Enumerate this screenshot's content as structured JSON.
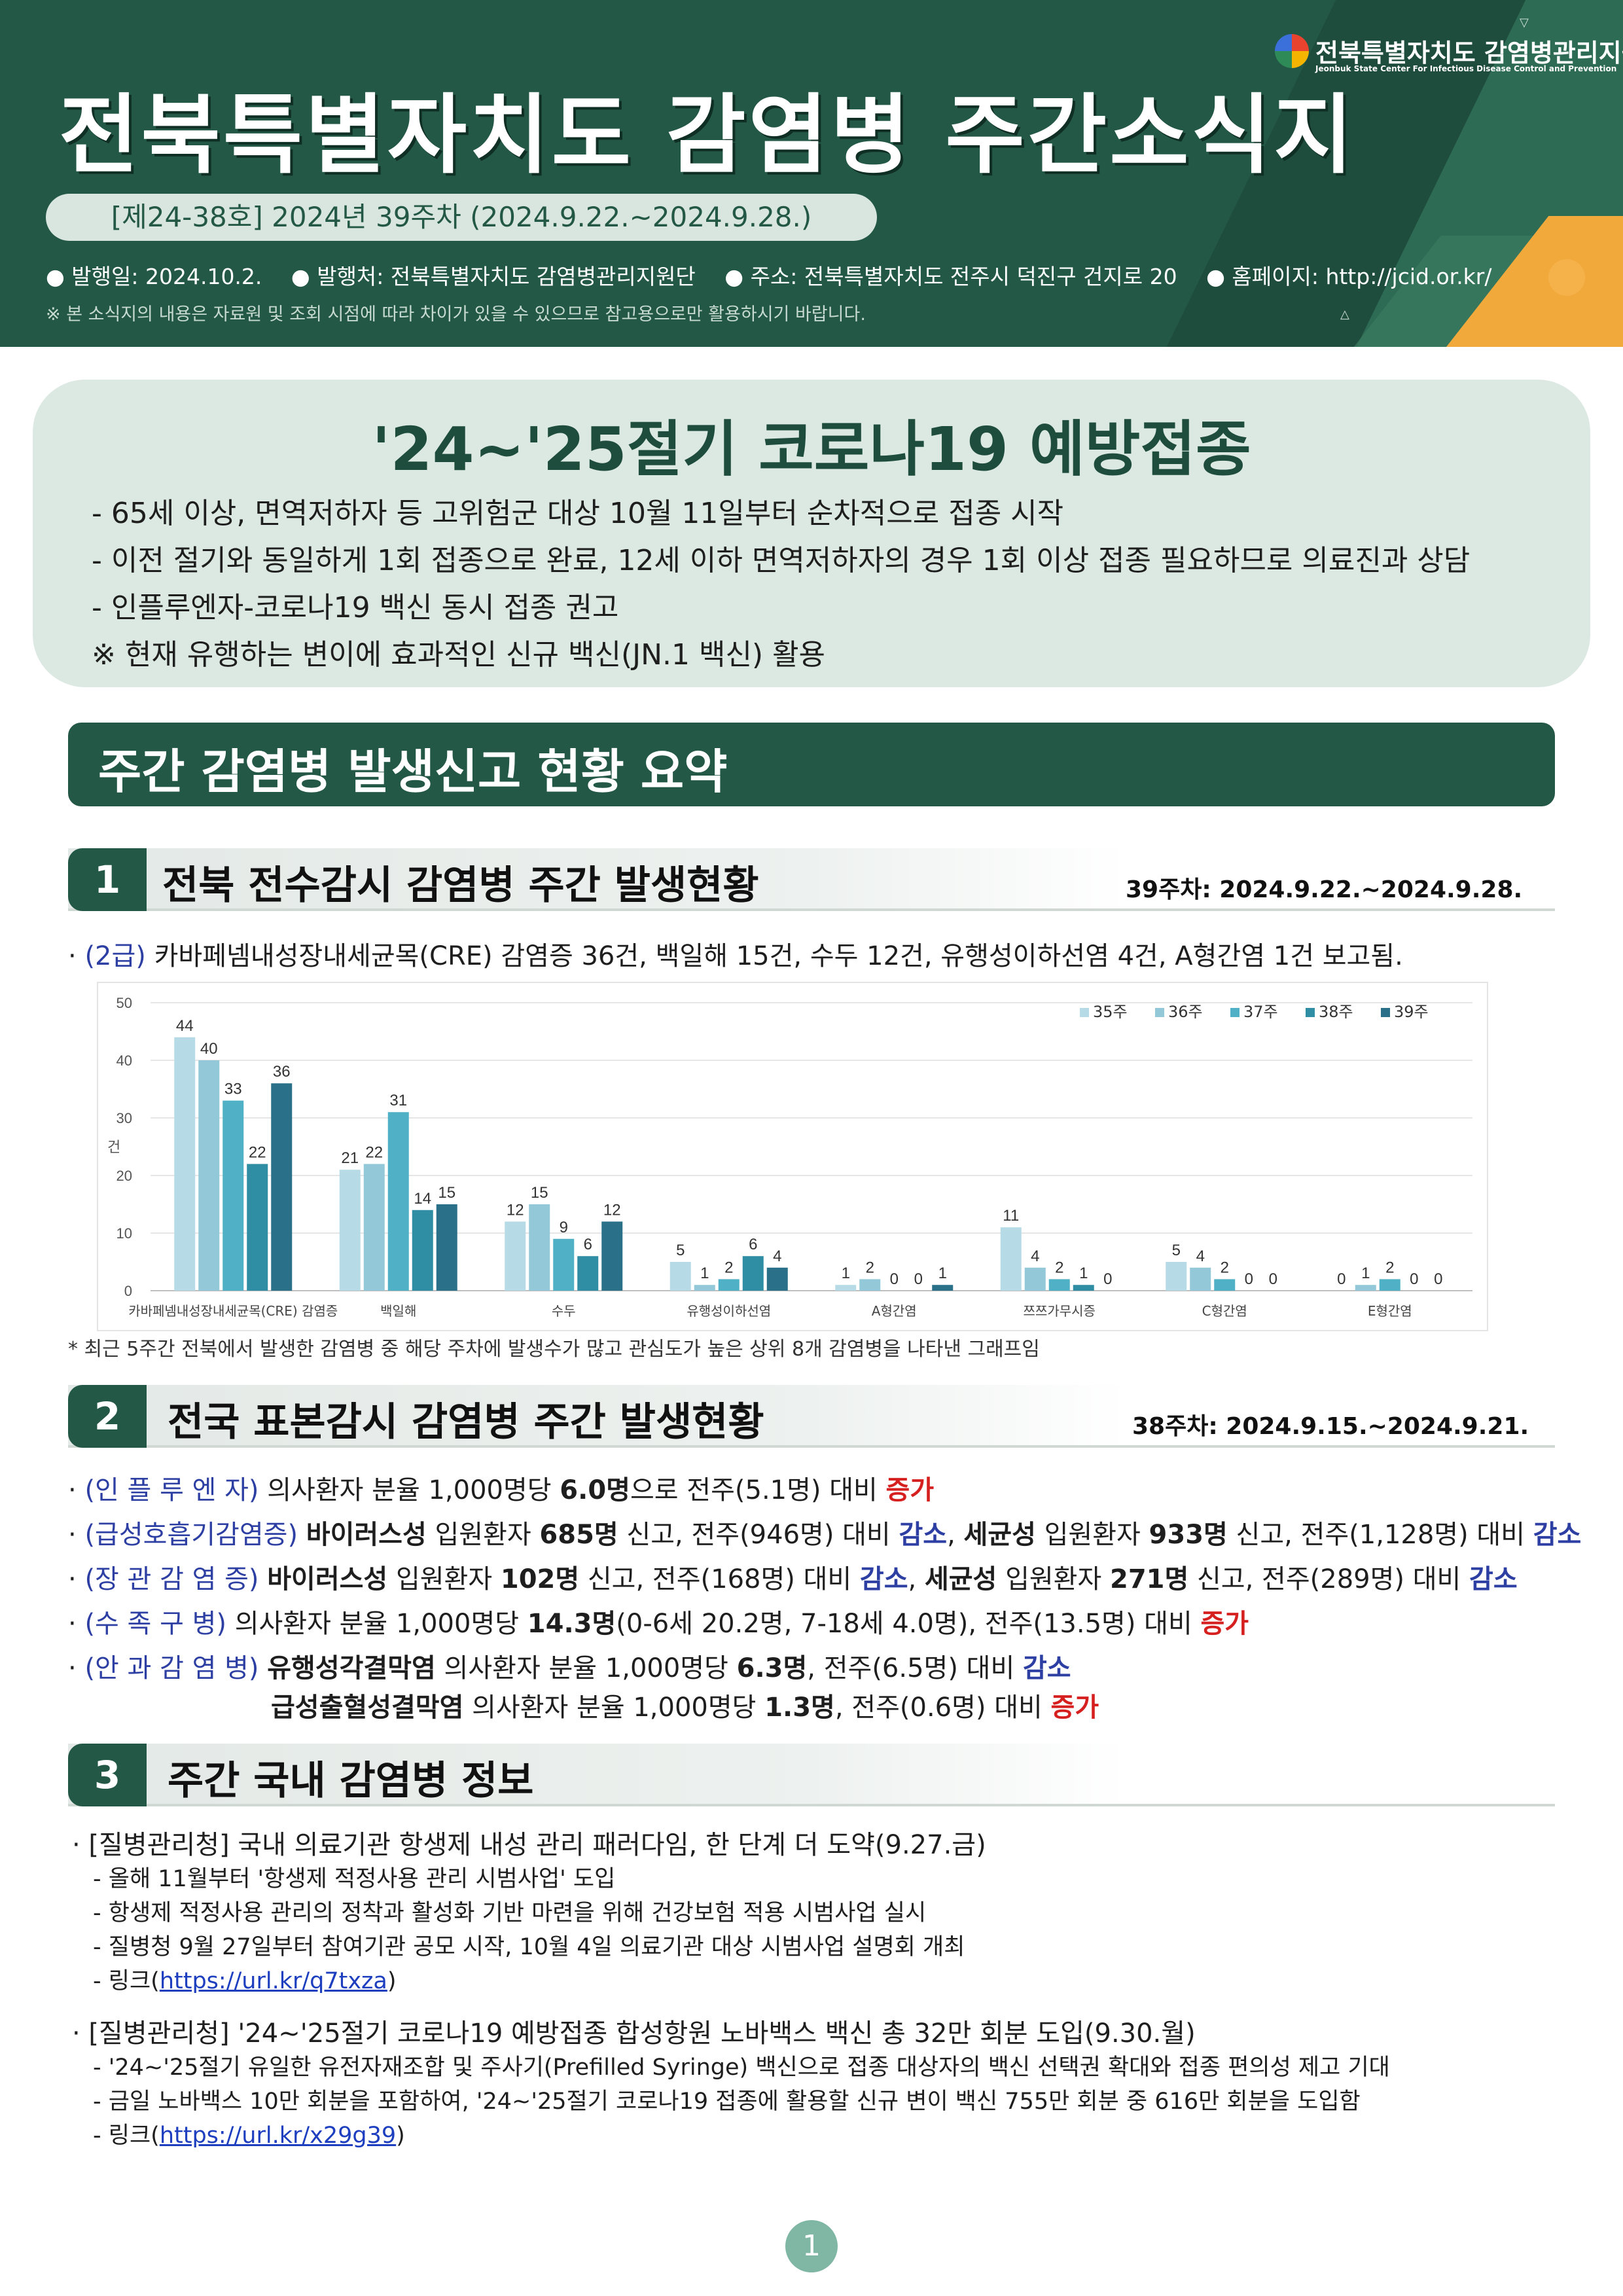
{
  "header": {
    "title": "전북특별자치도  감염병  주간소식지",
    "issue": "[제24-38호] 2024년 39주차 (2024.9.22.~2024.9.28.)",
    "published": "● 발행일: 2024.10.2.",
    "publisher": "● 발행처: 전북특별자치도 감염병관리지원단",
    "address": "● 주소: 전북특별자치도 전주시 덕진구 건지로 20",
    "homepage": "● 홈페이지: http://jcid.or.kr/",
    "notice": "※ 본 소식지의 내용은 자료원 및 조회 시점에 따라 차이가 있을 수 있으므로 참고용으로만 활용하시기 바랍니다.",
    "logo_name": "전북특별자치도 감염병관리지원단",
    "logo_eng": "Jeonbuk State Center For Infectious Disease Control and Prevention"
  },
  "vaccine": {
    "title": "'24~'25절기 코로나19 예방접종",
    "lines": [
      "- 65세 이상, 면역저하자 등 고위험군 대상 10월 11일부터 순차적으로 접종 시작",
      "- 이전 절기와 동일하게 1회 접종으로 완료, 12세 이하 면역저하자의 경우 1회 이상 접종 필요하므로 의료진과 상담",
      "- 인플루엔자-코로나19 백신 동시 접종 권고",
      "※ 현재 유행하는 변이에 효과적인 신규 백신(JN.1 백신) 활용"
    ]
  },
  "summary_title": "주간 감염병 발생신고 현황 요약",
  "section1": {
    "num": "1",
    "title": "전북 전수감시 감염병 주간 발생현황",
    "date": "39주차: 2024.9.22.~2024.9.28.",
    "grade": "(2급)",
    "text": "카바페넴내성장내세균목(CRE) 감염증 36건, 백일해 15건, 수두 12건, 유행성이하선염 4건, A형간염 1건 보고됨.",
    "note": "* 최근 5주간 전북에서 발생한 감염병 중 해당 주차에 발생수가 많고 관심도가 높은 상위 8개 감염병을 나타낸 그래프임"
  },
  "chart_data": {
    "type": "bar",
    "ylabel": "건",
    "ylim": [
      0,
      50
    ],
    "yticks": [
      "0",
      "10",
      "20",
      "30",
      "40",
      "50"
    ],
    "legend_position": "top-right",
    "categories": [
      "카바페넴내성장내세균목(CRE) 감염증",
      "백일해",
      "수두",
      "유행성이하선염",
      "A형간염",
      "쯔쯔가무시증",
      "C형간염",
      "E형간염"
    ],
    "colors": [
      "#b7dbe6",
      "#93c8d8",
      "#4fb0c6",
      "#2f8ea4",
      "#2a7089"
    ],
    "series": [
      {
        "name": "35주",
        "values": [
          44,
          21,
          12,
          5,
          1,
          11,
          5,
          0
        ]
      },
      {
        "name": "36주",
        "values": [
          40,
          22,
          15,
          1,
          2,
          4,
          4,
          1
        ]
      },
      {
        "name": "37주",
        "values": [
          33,
          31,
          9,
          2,
          0,
          2,
          2,
          2
        ]
      },
      {
        "name": "38주",
        "values": [
          22,
          14,
          6,
          6,
          0,
          1,
          0,
          0
        ]
      },
      {
        "name": "39주",
        "values": [
          36,
          15,
          12,
          4,
          1,
          0,
          0,
          0
        ]
      }
    ]
  },
  "section2": {
    "num": "2",
    "title": "전국 표본감시 감염병 주간 발생현황",
    "date": "38주차: 2024.9.15.~2024.9.21.",
    "flu": {
      "label": "(인 플 루 엔 자)",
      "t1": "의사환자 분율 1,000명당 ",
      "v1": "6.0명",
      "t2": "으로 전주(5.1명) 대비 ",
      "trend": "증가"
    },
    "resp": {
      "label": "(급성호흡기감염증)",
      "virus": "바이러스성",
      "t1": " 입원환자 ",
      "v1": "685명",
      "t2": " 신고, 전주(946명) 대비 ",
      "trend1": "감소",
      "comma": ", ",
      "bact": "세균성",
      "t3": " 입원환자 ",
      "v2": "933명",
      "t4": " 신고, 전주(1,128명) 대비 ",
      "trend2": "감소"
    },
    "enteric": {
      "label": "(장 관 감 염 증)",
      "virus": "바이러스성",
      "t1": " 입원환자 ",
      "v1": "102명",
      "t2": " 신고, 전주(168명) 대비 ",
      "trend1": "감소",
      "comma": ", ",
      "bact": "세균성",
      "t3": " 입원환자 ",
      "v2": "271명",
      "t4": " 신고, 전주(289명) 대비 ",
      "trend2": "감소"
    },
    "hfmd": {
      "label": "(수  족  구  병)",
      "t1": "의사환자 분율 1,000명당 ",
      "v1": "14.3명",
      "t2": "(0-6세 20.2명, 7-18세 4.0명), 전주(13.5명) 대비 ",
      "trend": "증가"
    },
    "eye": {
      "label": "(안 과 감 염 병)",
      "d1": "유행성각결막염",
      "t1": " 의사환자 분율 1,000명당 ",
      "v1": "6.3명",
      "t2": ", 전주(6.5명) 대비 ",
      "trend1": "감소",
      "d2": "급성출혈성결막염",
      "t3": " 의사환자 분율 1,000명당 ",
      "v2": "1.3명",
      "t4": ", 전주(0.6명) 대비 ",
      "trend2": "증가"
    }
  },
  "section3": {
    "num": "3",
    "title": "주간 국내 감염병 정보",
    "news1": {
      "head": "· [질병관리청] 국내 의료기관 항생제 내성 관리 패러다임, 한 단계 더 도약(9.27.금)",
      "items": [
        "- 올해 11월부터 '항생제 적정사용 관리 시범사업' 도입",
        "- 항생제 적정사용 관리의 정착과 활성화 기반 마련을 위해 건강보험 적용 시범사업 실시",
        "- 질병청 9월 27일부터 참여기관 공모 시작, 10월 4일 의료기관 대상 시범사업 설명회 개최"
      ],
      "link_prefix": "- 링크(",
      "link": "https://url.kr/q7txza",
      "link_suffix": ")"
    },
    "news2": {
      "head": "· [질병관리청] '24~'25절기 코로나19 예방접종 합성항원 노바백스 백신 총 32만 회분 도입(9.30.월)",
      "items": [
        "- '24~'25절기 유일한 유전자재조합 및 주사기(Prefilled Syringe) 백신으로 접종 대상자의 백신 선택권 확대와 접종 편의성 제고 기대",
        "- 금일 노바백스 10만 회분을 포함하여, '24~'25절기 코로나19 접종에 활용할 신규 변이 백신 755만 회분 중 616만 회분을 도입함"
      ],
      "link_prefix": "- 링크(",
      "link": "https://url.kr/x29g39",
      "link_suffix": ")"
    }
  },
  "page_number": "1"
}
